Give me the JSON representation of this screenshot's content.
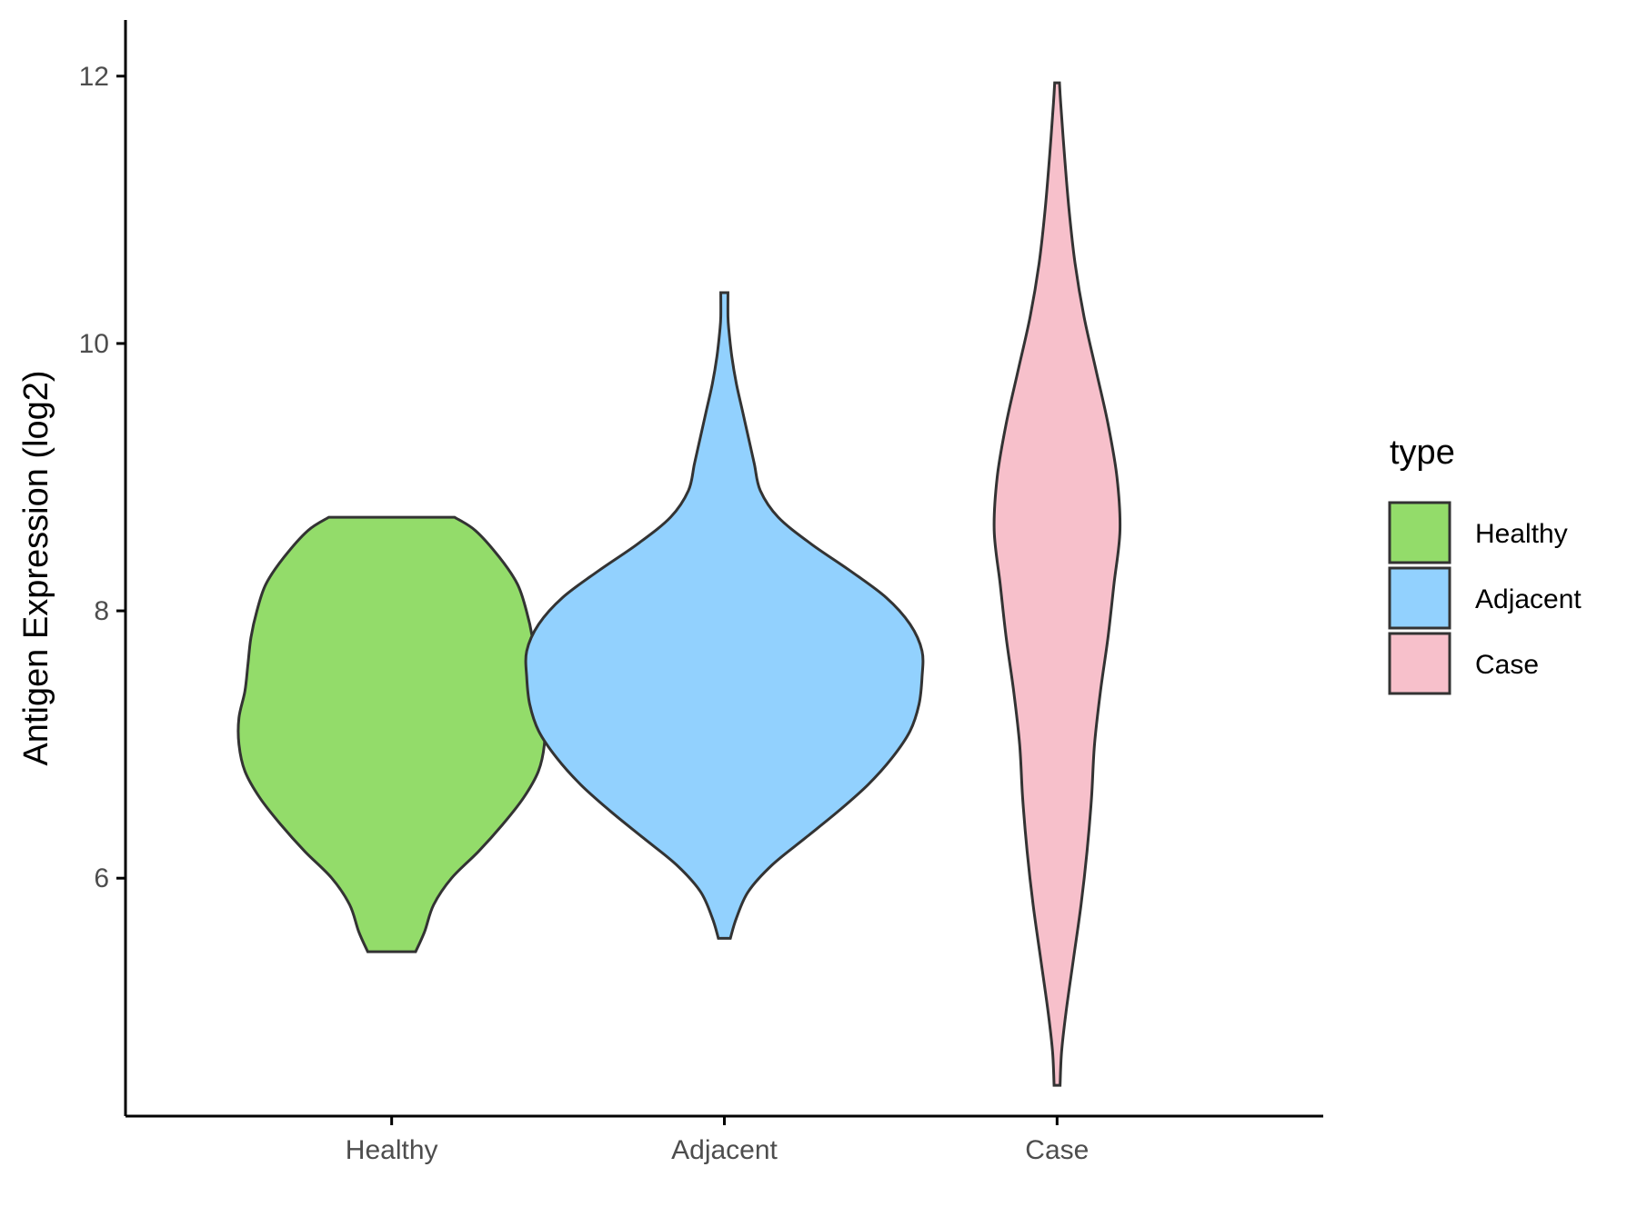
{
  "chart_data": {
    "type": "violin",
    "title": "",
    "xlabel": "",
    "ylabel": "Antigen Expression (log2)",
    "ylim": [
      4.22,
      12.42
    ],
    "y_ticks": [
      6,
      8,
      10,
      12
    ],
    "categories": [
      "Healthy",
      "Adjacent",
      "Case"
    ],
    "legend": {
      "title": "type",
      "position": "right",
      "items": [
        "Healthy",
        "Adjacent",
        "Case"
      ]
    },
    "grid": false,
    "series": [
      {
        "name": "Healthy",
        "color": "#93dc6a",
        "min": 5.45,
        "max": 8.7,
        "profile": [
          [
            5.45,
            0.08
          ],
          [
            5.6,
            0.11
          ],
          [
            5.8,
            0.14
          ],
          [
            6.0,
            0.2
          ],
          [
            6.2,
            0.29
          ],
          [
            6.4,
            0.37
          ],
          [
            6.6,
            0.44
          ],
          [
            6.8,
            0.49
          ],
          [
            7.0,
            0.51
          ],
          [
            7.2,
            0.51
          ],
          [
            7.4,
            0.49
          ],
          [
            7.6,
            0.48
          ],
          [
            7.8,
            0.47
          ],
          [
            8.0,
            0.45
          ],
          [
            8.2,
            0.42
          ],
          [
            8.4,
            0.36
          ],
          [
            8.6,
            0.28
          ],
          [
            8.7,
            0.21
          ]
        ]
      },
      {
        "name": "Adjacent",
        "color": "#92d1fe",
        "min": 5.55,
        "max": 10.38,
        "profile": [
          [
            5.55,
            0.02
          ],
          [
            5.7,
            0.04
          ],
          [
            5.9,
            0.08
          ],
          [
            6.1,
            0.16
          ],
          [
            6.3,
            0.27
          ],
          [
            6.5,
            0.38
          ],
          [
            6.7,
            0.48
          ],
          [
            6.9,
            0.56
          ],
          [
            7.1,
            0.62
          ],
          [
            7.3,
            0.65
          ],
          [
            7.5,
            0.66
          ],
          [
            7.7,
            0.66
          ],
          [
            7.9,
            0.62
          ],
          [
            8.1,
            0.54
          ],
          [
            8.3,
            0.42
          ],
          [
            8.5,
            0.29
          ],
          [
            8.7,
            0.18
          ],
          [
            8.9,
            0.12
          ],
          [
            9.1,
            0.1
          ],
          [
            9.3,
            0.08
          ],
          [
            9.5,
            0.06
          ],
          [
            9.7,
            0.04
          ],
          [
            9.9,
            0.025
          ],
          [
            10.1,
            0.015
          ],
          [
            10.2,
            0.012
          ],
          [
            10.38,
            0.012
          ]
        ]
      },
      {
        "name": "Case",
        "color": "#f7c0cb",
        "min": 4.45,
        "max": 11.95,
        "profile": [
          [
            4.45,
            0.01
          ],
          [
            4.7,
            0.015
          ],
          [
            5.0,
            0.03
          ],
          [
            5.4,
            0.055
          ],
          [
            5.8,
            0.08
          ],
          [
            6.2,
            0.1
          ],
          [
            6.6,
            0.115
          ],
          [
            7.0,
            0.125
          ],
          [
            7.4,
            0.145
          ],
          [
            7.8,
            0.17
          ],
          [
            8.2,
            0.19
          ],
          [
            8.6,
            0.21
          ],
          [
            9.0,
            0.2
          ],
          [
            9.4,
            0.17
          ],
          [
            9.8,
            0.13
          ],
          [
            10.2,
            0.09
          ],
          [
            10.6,
            0.06
          ],
          [
            11.0,
            0.04
          ],
          [
            11.4,
            0.025
          ],
          [
            11.8,
            0.012
          ],
          [
            11.95,
            0.008
          ]
        ]
      }
    ]
  }
}
